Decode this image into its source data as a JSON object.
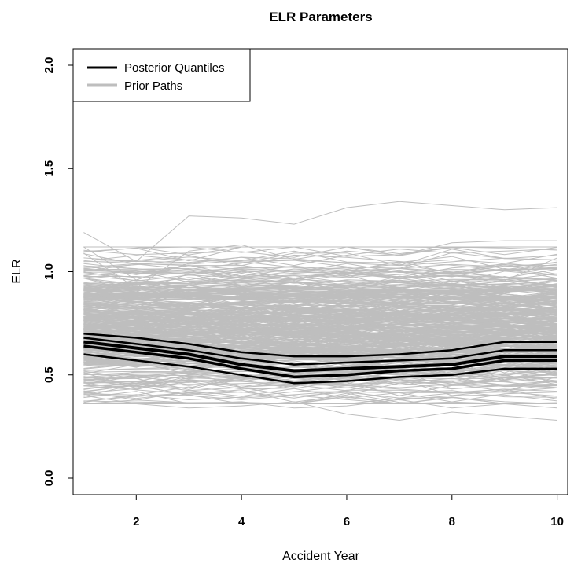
{
  "chart_data": {
    "type": "line",
    "title": "ELR Parameters",
    "xlabel": "Accident Year",
    "ylabel": "ELR",
    "xlim": [
      0.8,
      10.2
    ],
    "ylim": [
      -0.08,
      2.08
    ],
    "x_ticks": [
      2,
      4,
      6,
      8,
      10
    ],
    "y_ticks": [
      0.0,
      0.5,
      1.0,
      1.5,
      2.0
    ],
    "y_tick_labels": [
      "0.0",
      "0.5",
      "1.0",
      "1.5",
      "2.0"
    ],
    "legend": {
      "position": "top-left",
      "entries": [
        {
          "label": "Posterior Quantiles",
          "color": "#000000"
        },
        {
          "label": "Prior Paths",
          "color": "#bebebe"
        }
      ]
    },
    "x": [
      1,
      2,
      3,
      4,
      5,
      6,
      7,
      8,
      9,
      10
    ],
    "posterior_quantiles": [
      {
        "quantile": "q1",
        "values": [
          0.7,
          0.68,
          0.65,
          0.61,
          0.59,
          0.59,
          0.6,
          0.62,
          0.66,
          0.66
        ]
      },
      {
        "quantile": "q2",
        "values": [
          0.68,
          0.65,
          0.62,
          0.58,
          0.55,
          0.56,
          0.57,
          0.58,
          0.62,
          0.62
        ]
      },
      {
        "quantile": "q3",
        "values": [
          0.66,
          0.63,
          0.6,
          0.55,
          0.52,
          0.53,
          0.54,
          0.55,
          0.59,
          0.59
        ]
      },
      {
        "quantile": "q4",
        "values": [
          0.64,
          0.61,
          0.58,
          0.53,
          0.49,
          0.5,
          0.52,
          0.53,
          0.57,
          0.57
        ]
      },
      {
        "quantile": "q5",
        "values": [
          0.6,
          0.57,
          0.54,
          0.5,
          0.46,
          0.47,
          0.49,
          0.5,
          0.53,
          0.53
        ]
      }
    ],
    "prior_paths_band": {
      "lower": 0.38,
      "upper": 1.1,
      "count": 400
    },
    "prior_path_outliers": [
      {
        "values": [
          1.19,
          1.05,
          1.27,
          1.26,
          1.23,
          1.31,
          1.34,
          1.32,
          1.3,
          1.31
        ]
      },
      {
        "values": [
          1.09,
          0.92,
          1.1,
          1.13,
          1.06,
          1.1,
          1.08,
          1.14,
          1.15,
          1.15
        ]
      },
      {
        "values": [
          1.12,
          0.96,
          1.04,
          1.07,
          1.03,
          1.08,
          1.11,
          1.09,
          1.1,
          1.11
        ]
      },
      {
        "values": [
          0.4,
          0.36,
          0.34,
          0.35,
          0.37,
          0.31,
          0.28,
          0.32,
          0.3,
          0.28
        ]
      },
      {
        "values": [
          0.39,
          0.42,
          0.36,
          0.37,
          0.34,
          0.35,
          0.38,
          0.34,
          0.36,
          0.34
        ]
      },
      {
        "values": [
          0.42,
          0.45,
          0.4,
          0.38,
          0.4,
          0.38,
          0.36,
          0.39,
          0.37,
          0.36
        ]
      }
    ]
  }
}
